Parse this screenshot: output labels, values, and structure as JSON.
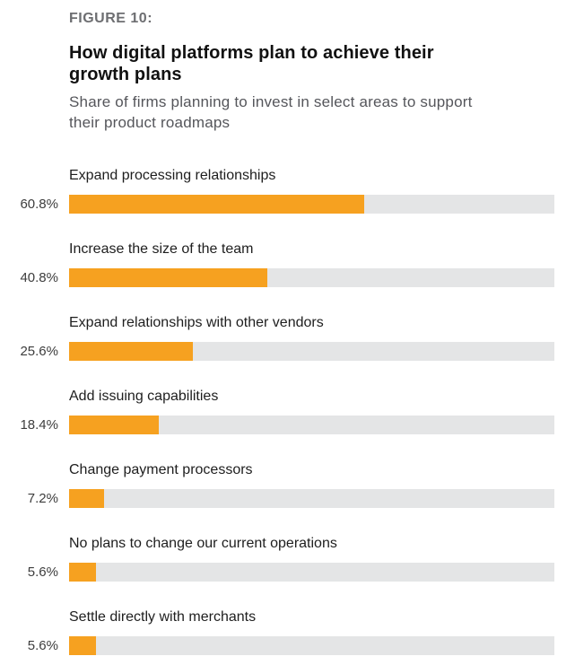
{
  "figure_label": "FIGURE 10:",
  "title": "How digital platforms plan to achieve their growth plans",
  "subtitle": "Share of firms planning to invest in select areas to support their product roadmaps",
  "colors": {
    "bar_fill": "#F6A120",
    "bar_track": "#E4E5E6",
    "figure_label": "#6D6E71",
    "title": "#111111",
    "subtitle": "#55565B",
    "category_label": "#1E1E1E",
    "value_label": "#3D3D3D"
  },
  "chart_data": {
    "type": "bar",
    "orientation": "horizontal",
    "title": "How digital platforms plan to achieve their growth plans",
    "subtitle": "Share of firms planning to invest in select areas to support their product roadmaps",
    "categories": [
      "Expand processing relationships",
      "Increase the size of the team",
      "Expand relationships with other vendors",
      "Add issuing capabilities",
      "Change payment processors",
      "No plans to change our current operations",
      "Settle directly with merchants"
    ],
    "values": [
      60.8,
      40.8,
      25.6,
      18.4,
      7.2,
      5.6,
      5.6
    ],
    "value_labels": [
      "60.8%",
      "40.8%",
      "25.6%",
      "18.4%",
      "7.2%",
      "5.6%",
      "5.6%"
    ],
    "xlim": [
      0,
      100
    ],
    "grid": false,
    "legend": "none",
    "value_label_position": "left-of-bar",
    "category_label_position": "above-bar"
  }
}
